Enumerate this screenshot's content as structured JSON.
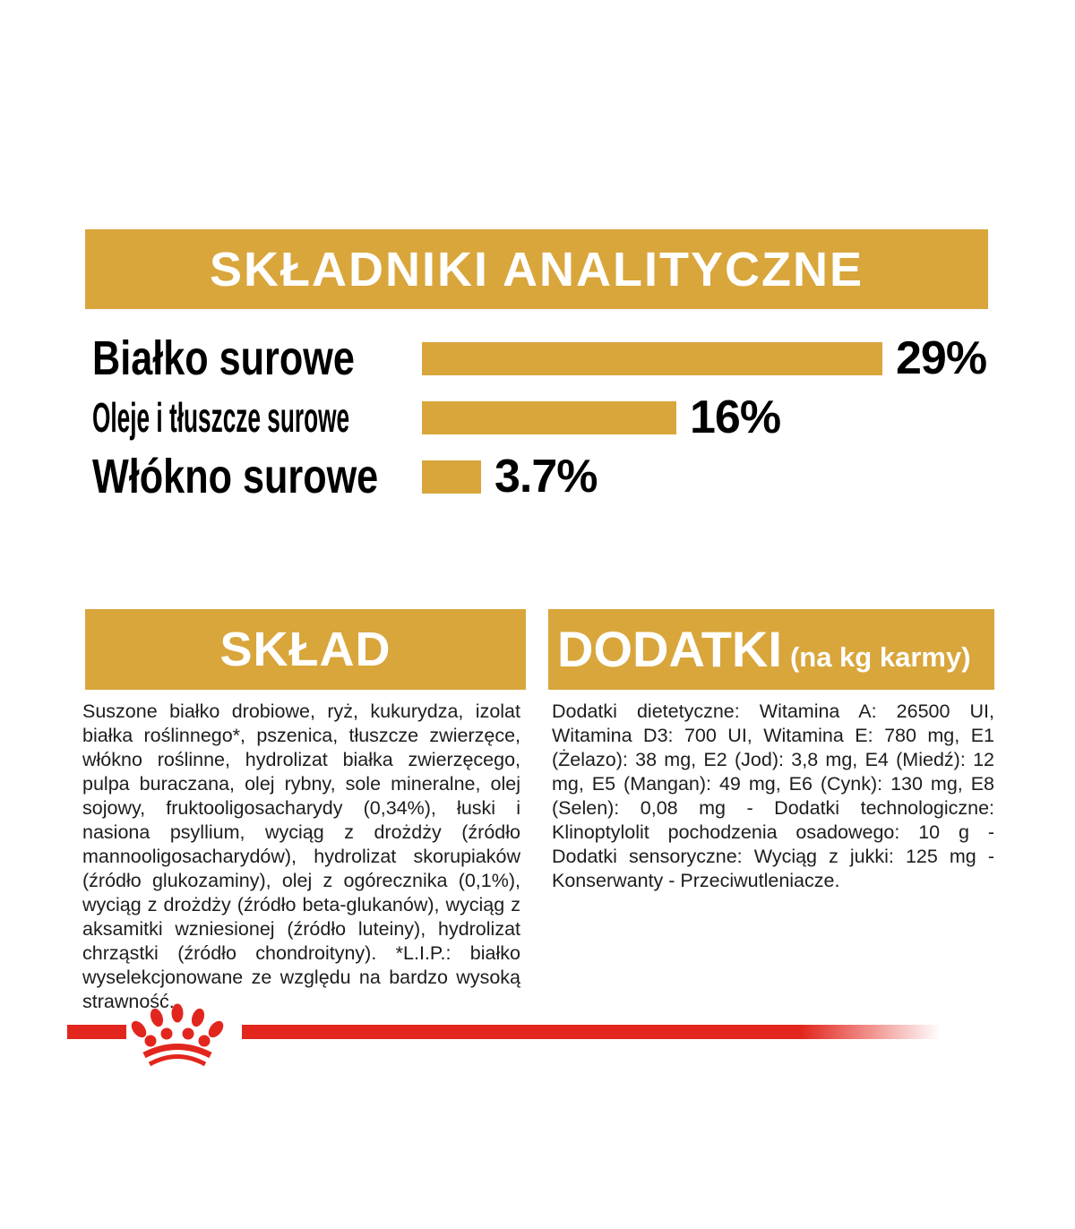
{
  "colors": {
    "gold": "#D9A63C",
    "red": "#E2261D",
    "text": "#1D1D1B"
  },
  "analytics_section": {
    "title": "SKŁADNIKI ANALITYCZNE"
  },
  "chart_data": {
    "type": "bar",
    "orientation": "horizontal",
    "title": "SKŁADNIKI ANALITYCZNE",
    "categories": [
      "Białko surowe",
      "Oleje i tłuszcze surowe",
      "Włókno surowe"
    ],
    "values": [
      29,
      16,
      3.7
    ],
    "value_labels": [
      "29%",
      "16%",
      "3.7%"
    ],
    "unit": "%",
    "xlim": [
      0,
      30
    ],
    "bar_color": "#D9A63C",
    "grid": false,
    "legend": "none",
    "value_label_position": "end-of-bar"
  },
  "sklad_section": {
    "title": "SKŁAD",
    "body": "Suszone białko drobiowe, ryż, kukurydza, izolat białka roślinnego*, pszenica, tłuszcze zwierzęce, włókno roślinne, hydrolizat białka zwierzęcego, pulpa buraczana, olej rybny, sole mineralne, olej sojowy, fruktooligosacharydy (0,34%), łuski i nasiona psyllium, wyciąg z drożdży (źródło mannooligosacharydów), hydrolizat skorupiaków (źródło glukozaminy), olej z ogórecznika (0,1%), wyciąg z drożdży (źródło beta-glukanów), wyciąg z aksamitki wzniesionej (źródło luteiny), hydrolizat chrząstki (źródło chondroityny). *L.I.P.: białko wyselekcjonowane ze względu na bardzo wysoką strawność."
  },
  "dodatki_section": {
    "title": "DODATKI",
    "subtitle": "(na kg karmy)",
    "body": "Dodatki dietetyczne: Witamina A: 26500 UI, Witamina D3: 700 UI, Witamina E: 780 mg, E1 (Żelazo): 38 mg, E2 (Jod): 3,8 mg, E4 (Miedź): 12 mg, E5 (Mangan): 49 mg, E6 (Cynk): 130 mg, E8 (Selen): 0,08 mg - Dodatki technologiczne: Klinoptylolit pochodzenia osadowego: 10 g - Dodatki sensoryczne: Wyciąg z jukki: 125 mg - Konserwanty - Przeciwutleniacze."
  },
  "footer": {
    "logo": "royal-canin-crown"
  }
}
